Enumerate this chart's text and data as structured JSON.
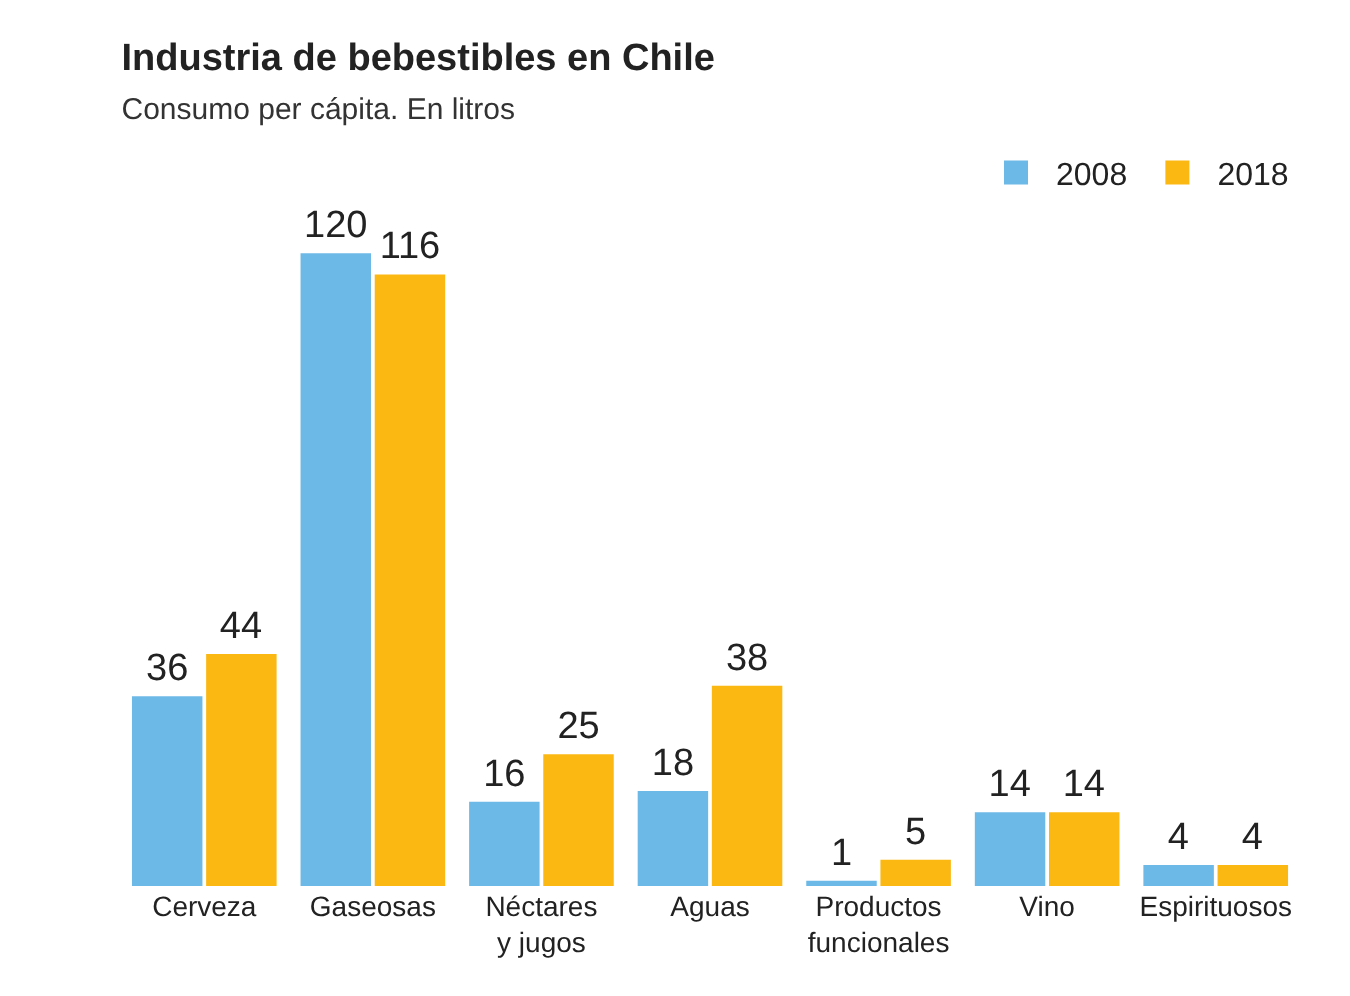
{
  "chart_data": {
    "type": "bar",
    "title": "Industria de bebestibles en Chile",
    "subtitle": "Consumo per cápita. En litros",
    "categories": [
      "Cerveza",
      "Gaseosas",
      "Néctares\ny jugos",
      "Aguas",
      "Productos\nfuncionales",
      "Vino",
      "Espirituosos"
    ],
    "series": [
      {
        "name": "2008",
        "color": "#6cb8e6",
        "values": [
          36,
          120,
          16,
          18,
          1,
          14,
          4
        ]
      },
      {
        "name": "2018",
        "color": "#fbb813",
        "values": [
          44,
          116,
          25,
          38,
          5,
          14,
          4
        ]
      }
    ],
    "data_labels": true,
    "legend": "top right"
  }
}
